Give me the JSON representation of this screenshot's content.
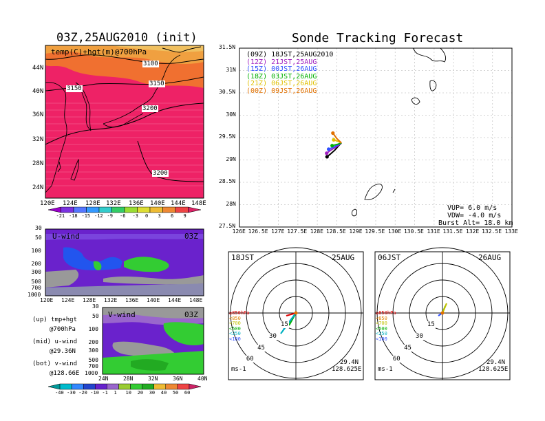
{
  "left_panel": {
    "title": "03Z,25AUG2010 (init)",
    "map": {
      "label": "temp(C)+hgt(m)@700hPa",
      "lat_ticks": [
        "44N",
        "40N",
        "36N",
        "32N",
        "28N",
        "24N"
      ],
      "lon_ticks": [
        "120E",
        "124E",
        "128E",
        "132E",
        "136E",
        "140E",
        "144E",
        "148E"
      ],
      "contour_labels": [
        "3100",
        "3150",
        "3150",
        "3200",
        "3200"
      ],
      "colorbar_labels": [
        "-21",
        "-18",
        "-15",
        "-12",
        "-9",
        "-6",
        "-3",
        "0",
        "3",
        "6",
        "9"
      ]
    },
    "uwind": {
      "label": "U-wind",
      "time": "03Z",
      "y_ticks": [
        "30",
        "50",
        "100",
        "200",
        "300",
        "500",
        "700",
        "1000"
      ],
      "x_ticks": [
        "120E",
        "124E",
        "128E",
        "132E",
        "136E",
        "140E",
        "144E",
        "148E"
      ]
    },
    "vwind": {
      "label": "V-wind",
      "time": "03Z",
      "y_ticks": [
        "30",
        "50",
        "100",
        "200",
        "300",
        "500",
        "700",
        "1000"
      ],
      "x_ticks": [
        "24N",
        "28N",
        "32N",
        "36N",
        "40N"
      ],
      "colorbar_labels": [
        "-40",
        "-30",
        "-20",
        "-10",
        "-1",
        "1",
        "10",
        "20",
        "30",
        "40",
        "50",
        "60"
      ]
    },
    "legend": [
      {
        "line1": "(up) tmp+hgt",
        "line2": "@700hPa"
      },
      {
        "line1": "(mid) u-wind",
        "line2": "@29.36N"
      },
      {
        "line1": "(bot) v-wind",
        "line2": "@128.66E"
      }
    ]
  },
  "main_panel": {
    "title": "Sonde Tracking Forecast",
    "legend": [
      {
        "text": "(09Z)  18JST,25AUG2010",
        "color": "#000000"
      },
      {
        "text": "(12Z)  21JST,25AUG",
        "color": "#a020c0"
      },
      {
        "text": "(15Z)  00JST,26AUG",
        "color": "#3050ff"
      },
      {
        "text": "(18Z)  03JST,26AUG",
        "color": "#00b000"
      },
      {
        "text": "(21Z)  06JST,26AUG",
        "color": "#e0c000"
      },
      {
        "text": "(00Z)  09JST,26AUG",
        "color": "#e07000"
      }
    ],
    "lat_ticks": [
      "31.5N",
      "31N",
      "30.5N",
      "30N",
      "29.5N",
      "29N",
      "28.5N",
      "28N",
      "27.5N"
    ],
    "lon_ticks": [
      "126E",
      "126.5E",
      "127E",
      "127.5E",
      "128E",
      "128.5E",
      "129E",
      "129.5E",
      "130E",
      "130.5E",
      "131E",
      "131.5E",
      "132E",
      "132.5E",
      "133E"
    ],
    "params": [
      "VUP= 6.0 m/s",
      "VDW= -4.0 m/s",
      "Burst Alt= 18.0 km"
    ]
  },
  "hodographs": [
    {
      "time": "18JST",
      "date": "25AUG",
      "lat": "29.4N",
      "lon": "128.625E",
      "unit": "ms-1",
      "rings": [
        "15",
        "30",
        "45",
        "60"
      ]
    },
    {
      "time": "06JST",
      "date": "26AUG",
      "lat": "29.4N",
      "lon": "128.625E",
      "unit": "ms-1",
      "rings": [
        "15",
        "30",
        "45",
        "60"
      ]
    }
  ],
  "hodo_legend": [
    {
      "text": "≥850hPa",
      "color": "#e00000"
    },
    {
      "text": "<850",
      "color": "#e08000"
    },
    {
      "text": "<700",
      "color": "#c0c000"
    },
    {
      "text": "<500",
      "color": "#00b000"
    },
    {
      "text": "<250",
      "color": "#00b0c0"
    },
    {
      "text": "<100",
      "color": "#3050ff"
    }
  ],
  "chart_data": {
    "type": "line",
    "title": "Sonde Tracking Forecast",
    "xlim": [
      126,
      133
    ],
    "ylim": [
      27.5,
      31.5
    ],
    "series": [
      {
        "name": "(09Z) 18JST,25AUG2010",
        "color": "#000000",
        "points": [
          [
            128.62,
            29.38
          ],
          [
            128.55,
            29.32
          ],
          [
            128.45,
            29.22
          ],
          [
            128.32,
            29.12
          ],
          [
            128.25,
            29.07
          ]
        ]
      },
      {
        "name": "(12Z) 21JST,25AUG",
        "color": "#a020c0",
        "points": [
          [
            128.62,
            29.38
          ],
          [
            128.5,
            29.3
          ],
          [
            128.35,
            29.22
          ],
          [
            128.24,
            29.15
          ]
        ]
      },
      {
        "name": "(15Z) 00JST,26AUG",
        "color": "#3050ff",
        "points": [
          [
            128.62,
            29.38
          ],
          [
            128.45,
            29.3
          ],
          [
            128.29,
            29.24
          ]
        ]
      },
      {
        "name": "(18Z) 03JST,26AUG",
        "color": "#00b000",
        "points": [
          [
            128.62,
            29.38
          ],
          [
            128.52,
            29.35
          ],
          [
            128.38,
            29.32
          ]
        ]
      },
      {
        "name": "(21Z) 06JST,26AUG",
        "color": "#e0c000",
        "points": [
          [
            128.62,
            29.38
          ],
          [
            128.52,
            29.42
          ],
          [
            128.42,
            29.45
          ]
        ]
      },
      {
        "name": "(00Z) 09JST,26AUG",
        "color": "#e07000",
        "points": [
          [
            128.62,
            29.38
          ],
          [
            128.5,
            29.48
          ],
          [
            128.4,
            29.6
          ]
        ]
      }
    ]
  },
  "colors": {
    "hot": "#ee2266",
    "warm": "#f07030",
    "orange": "#f0a040",
    "purple": "#6a22cc",
    "blue": "#2255ee",
    "green": "#33cc33",
    "gray": "#999999",
    "cb_temp": [
      "#9a00cc",
      "#7a33e0",
      "#5577ff",
      "#3399ff",
      "#33cccc",
      "#33cc66",
      "#99dd33",
      "#dddd33",
      "#eebb33",
      "#ee8833",
      "#ee4444",
      "#dd2266"
    ],
    "cb_wind": [
      "#009999",
      "#00bbcc",
      "#3388ff",
      "#2244cc",
      "#6622cc",
      "#9966cc",
      "#99cc33",
      "#33cc33",
      "#22aa22",
      "#eebb33",
      "#ee8833",
      "#ee4444",
      "#cc2266"
    ]
  }
}
